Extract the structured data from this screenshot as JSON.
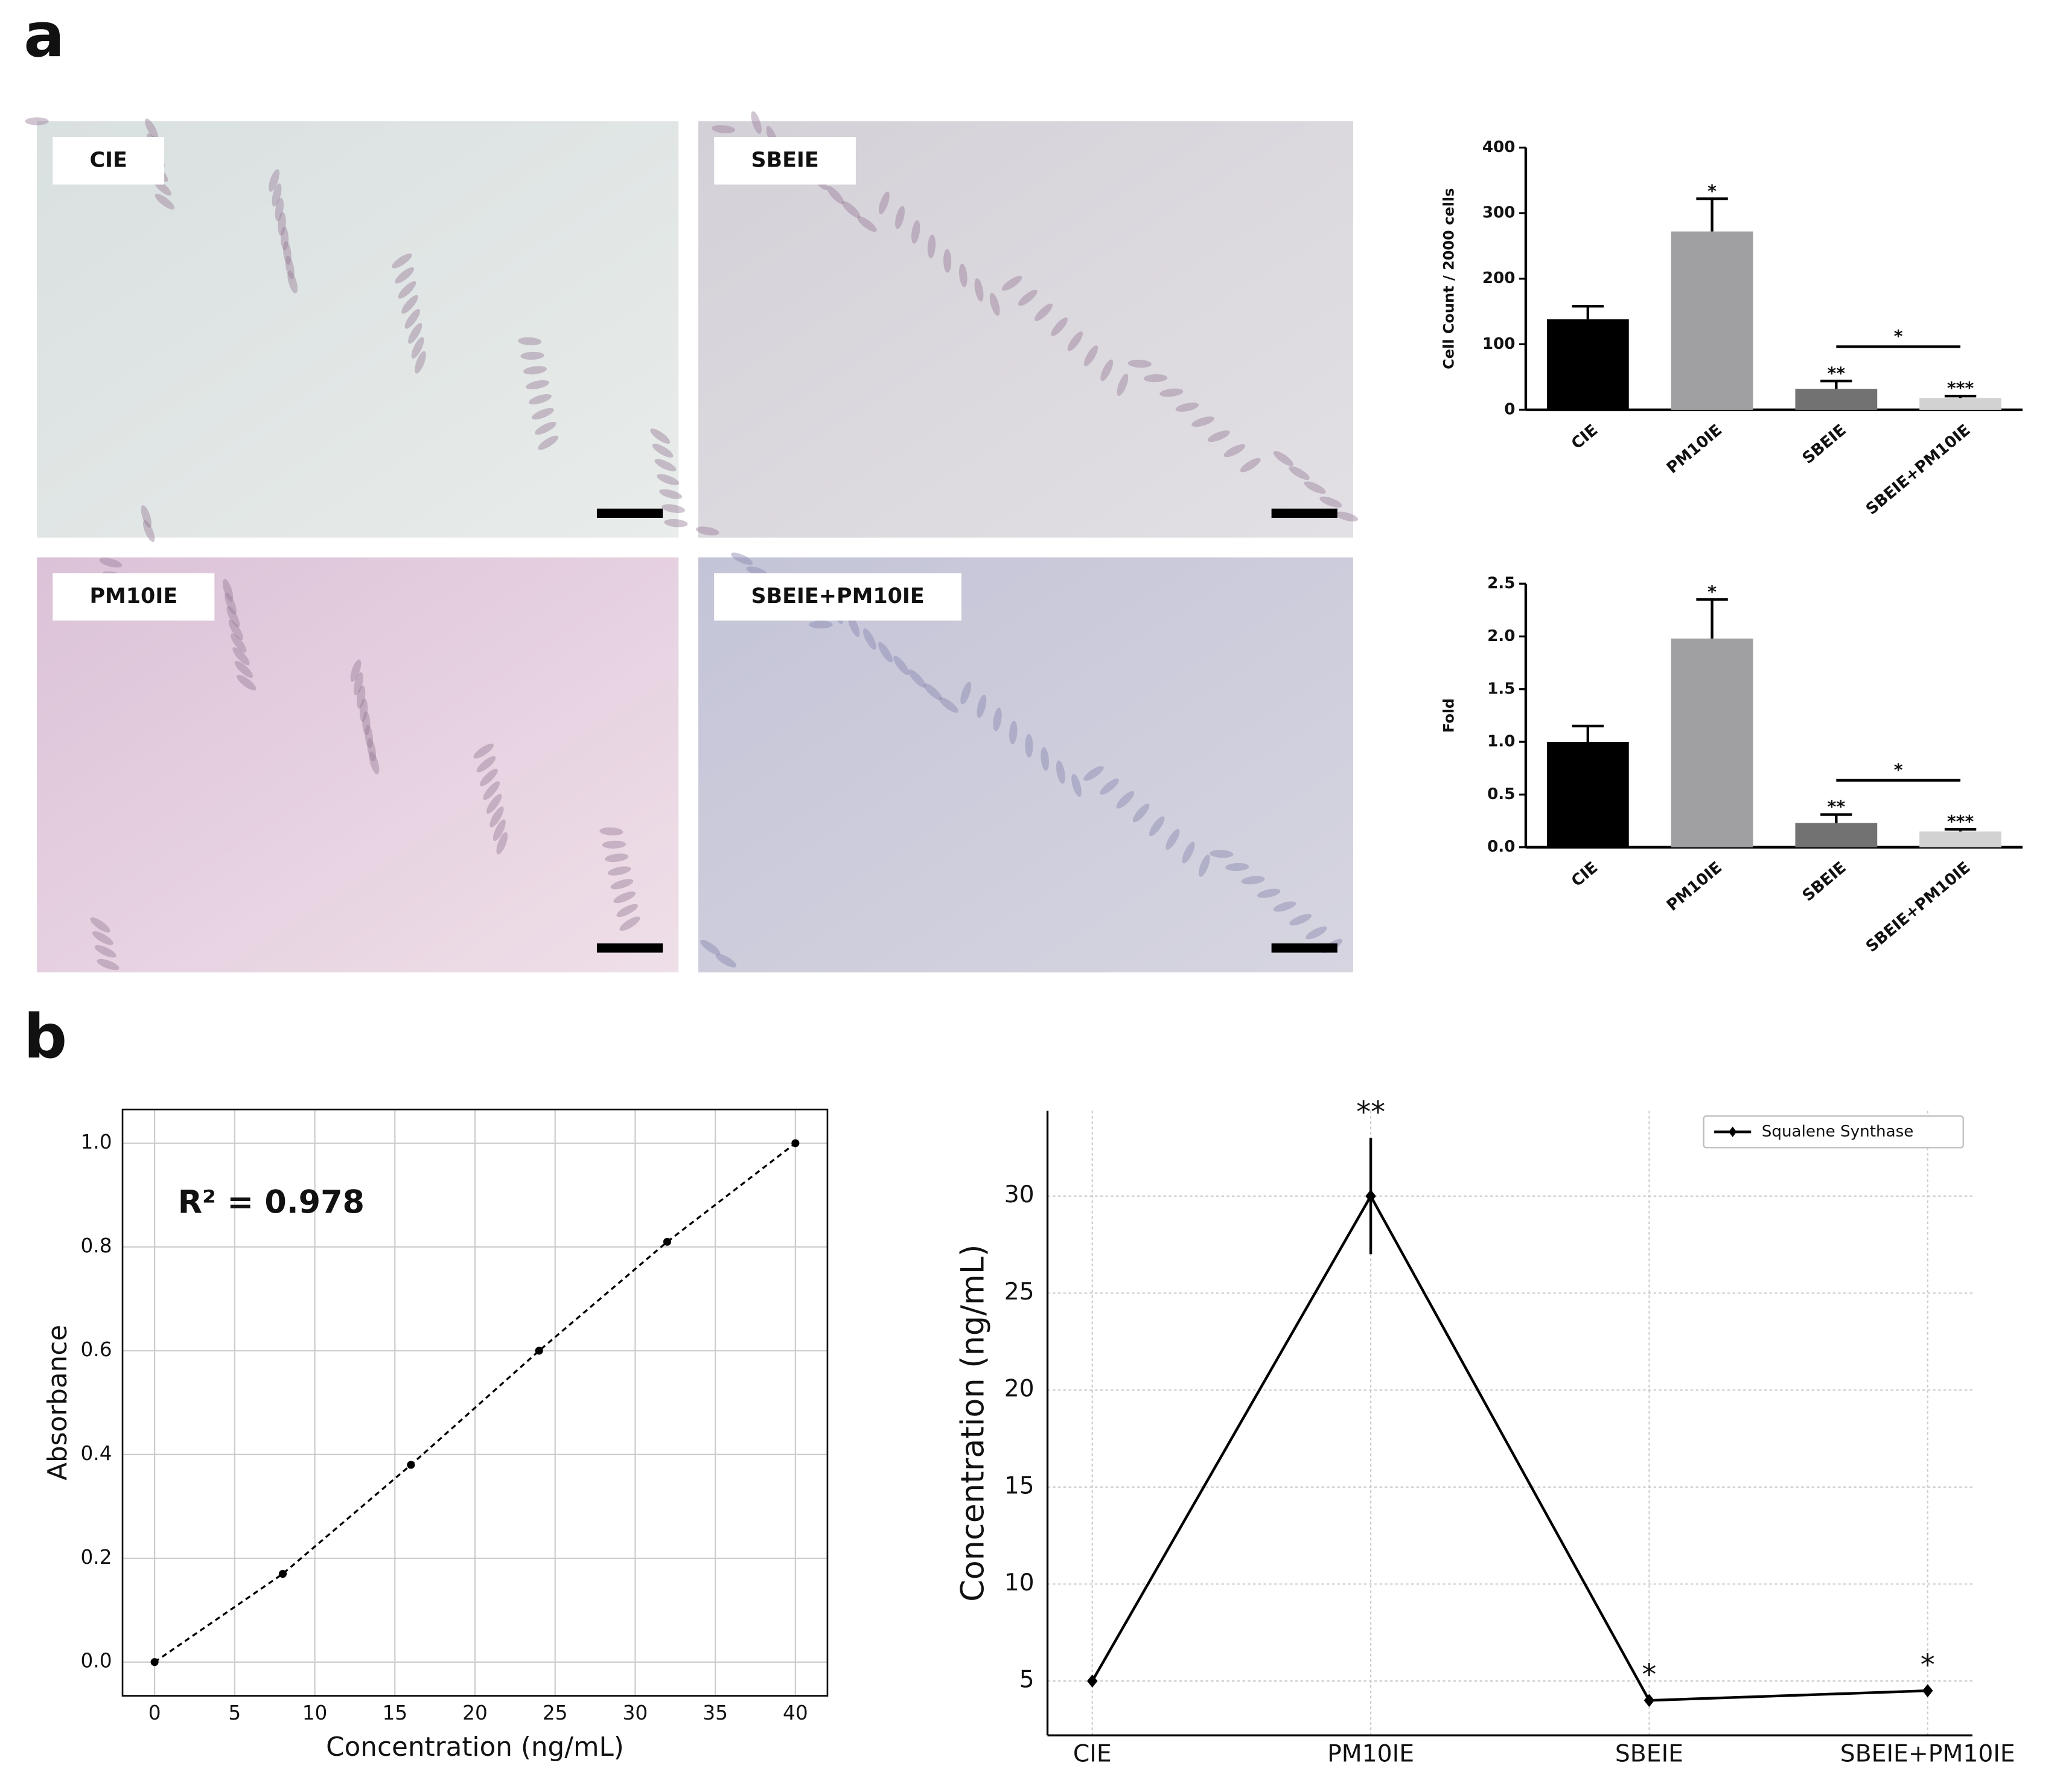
{
  "figure_labels": [
    "a",
    "b"
  ],
  "micrographs": [
    "CIE",
    "SBEIE",
    "PM10IE",
    "SBEIE+PM10IE"
  ],
  "chart_data": [
    {
      "type": "bar",
      "ylabel": "Cell Count / 2000 cells",
      "categories": [
        "CIE",
        "PM10IE",
        "SBEIE",
        "SBEIE+PM10IE"
      ],
      "values": [
        138,
        272,
        32,
        18
      ],
      "errors": [
        20,
        50,
        12,
        3
      ],
      "colors": [
        "#000000",
        "#a0a0a2",
        "#727272",
        "#d2d2d2"
      ],
      "ylim": [
        0,
        400
      ],
      "yticks": [
        0,
        100,
        200,
        300,
        400
      ],
      "significance": [
        null,
        "*",
        "**",
        "***"
      ],
      "bracket": "*"
    },
    {
      "type": "bar",
      "ylabel": "Fold",
      "categories": [
        "CIE",
        "PM10IE",
        "SBEIE",
        "SBEIE+PM10IE"
      ],
      "values": [
        1.0,
        1.98,
        0.23,
        0.15
      ],
      "errors": [
        0.15,
        0.37,
        0.08,
        0.02
      ],
      "colors": [
        "#000000",
        "#a0a0a2",
        "#727272",
        "#d2d2d2"
      ],
      "ylim": [
        0,
        2.5
      ],
      "yticks": [
        {
          "value": 0,
          "label": "0.0"
        },
        0.5,
        {
          "value": 1,
          "label": "1.0"
        },
        1.5,
        {
          "value": 2,
          "label": "2.0"
        },
        2.5
      ],
      "significance": [
        null,
        "*",
        "**",
        "***"
      ],
      "bracket": "*"
    },
    {
      "type": "scatter",
      "xlabel": "Concentration (ng/mL)",
      "ylabel": "Absorbance",
      "annotation": "R² = 0.978",
      "x": [
        0,
        8,
        16,
        24,
        32,
        40
      ],
      "values": [
        0,
        0.17,
        0.38,
        0.6,
        0.81,
        1.0
      ],
      "color": "#000000",
      "line_style": "dashed",
      "xlim": [
        -2,
        42
      ],
      "xticks": [
        0,
        5,
        10,
        15,
        20,
        25,
        30,
        35,
        40
      ],
      "ylim": [
        -0.065,
        1.065
      ],
      "yticks": [
        {
          "value": 0,
          "label": "0.0"
        },
        0.2,
        0.4,
        0.6,
        0.8,
        {
          "value": 1,
          "label": "1.0"
        }
      ],
      "grid": true
    },
    {
      "type": "line",
      "ylabel": "Concentration (ng/mL)",
      "categories": [
        "CIE",
        "PM10IE",
        "SBEIE",
        "SBEIE+PM10IE"
      ],
      "series": [
        {
          "name": "Squalene Synthase",
          "color": "#000000",
          "values": [
            5,
            30,
            4,
            4.5
          ],
          "errors": [
            null,
            3,
            null,
            null
          ]
        }
      ],
      "significance": [
        null,
        "**",
        "*",
        "*"
      ],
      "ylim": [
        2.2,
        34.4
      ],
      "yticks": [
        5,
        10,
        15,
        20,
        25,
        30
      ],
      "grid": true,
      "legend": "upper right"
    }
  ]
}
